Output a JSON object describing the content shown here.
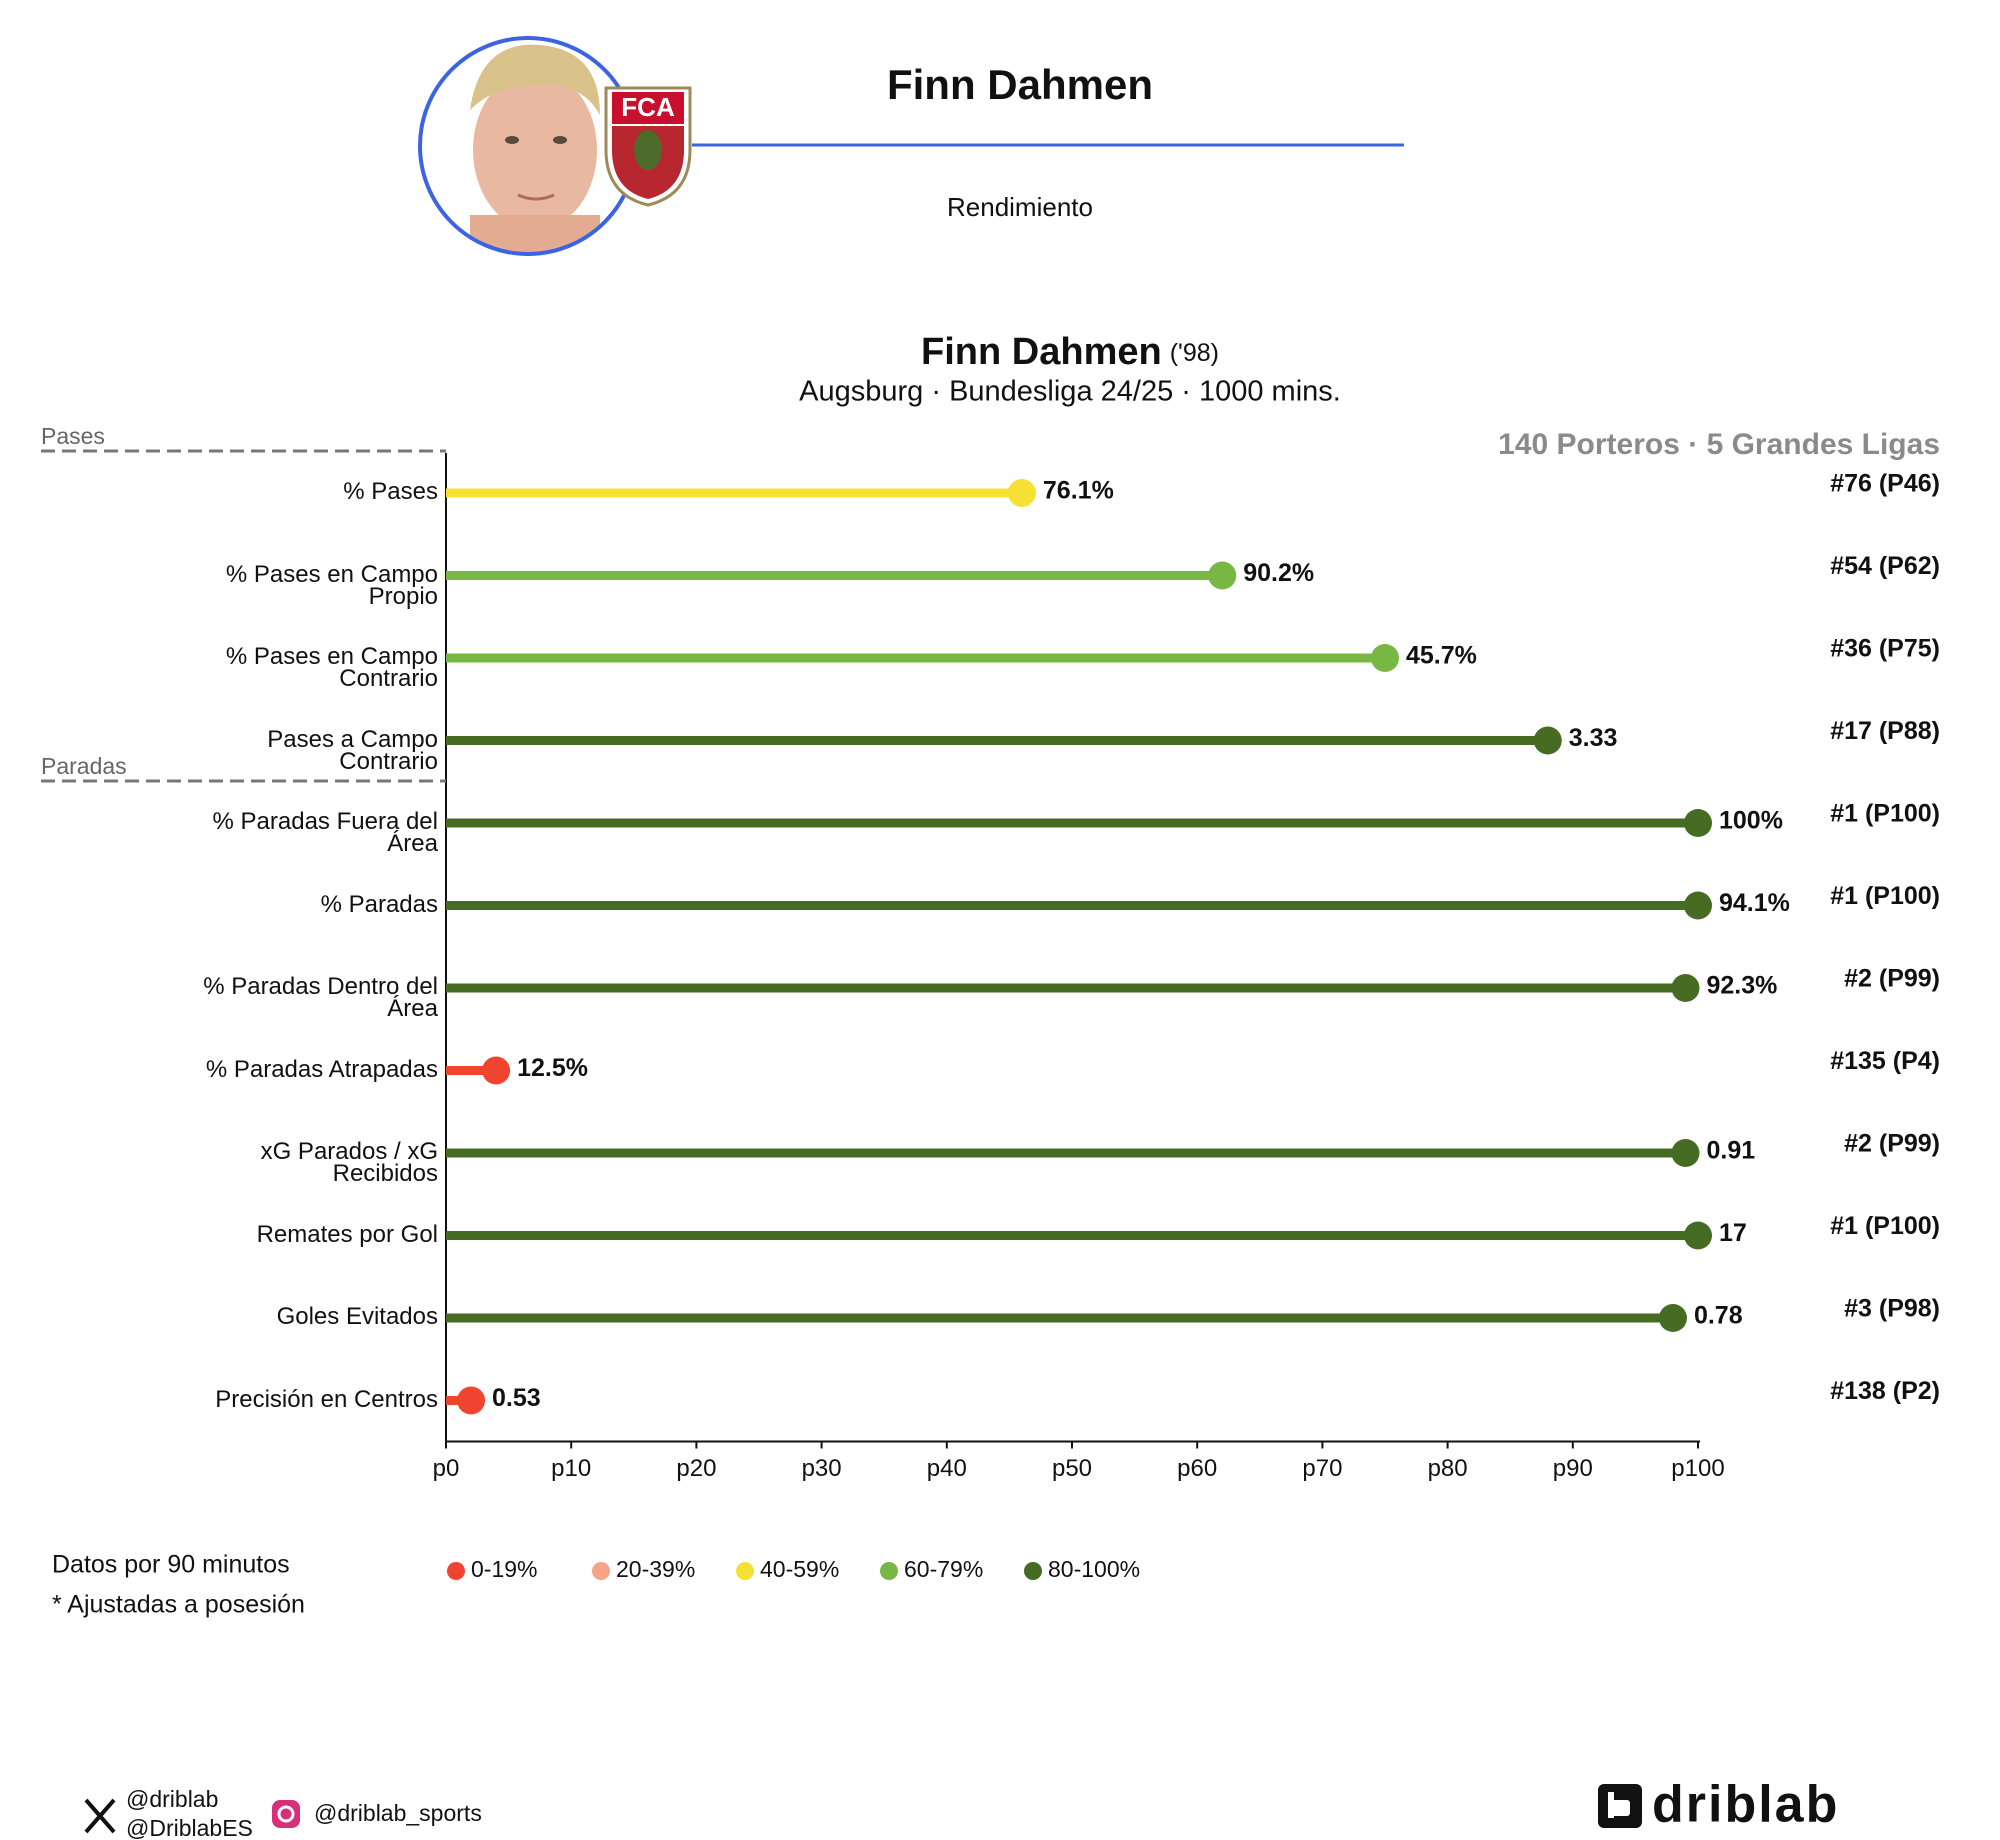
{
  "header": {
    "name": "Finn Dahmen",
    "subtitle": "Rendimiento",
    "crest_text": "FCA"
  },
  "chart_data": {
    "type": "lollipop",
    "title": "Finn Dahmen",
    "title_suffix": "('98)",
    "subtitle": "Augsburg · Bundesliga 24/25 · 1000 mins.",
    "context": "140 Porteros · 5 Grandes Ligas",
    "xlim": [
      0,
      100
    ],
    "xticks": [
      {
        "value": 0,
        "label": "p0"
      },
      {
        "value": 10,
        "label": "p10"
      },
      {
        "value": 20,
        "label": "p20"
      },
      {
        "value": 30,
        "label": "p30"
      },
      {
        "value": 40,
        "label": "p40"
      },
      {
        "value": 50,
        "label": "p50"
      },
      {
        "value": 60,
        "label": "p60"
      },
      {
        "value": 70,
        "label": "p70"
      },
      {
        "value": 80,
        "label": "p80"
      },
      {
        "value": 90,
        "label": "p90"
      },
      {
        "value": 100,
        "label": "p100"
      }
    ],
    "groups": [
      {
        "name": "Pases",
        "rows": [
          {
            "label": "% Pases",
            "value": 46,
            "stat": "76.1%",
            "rank": "#76 (P46)",
            "color": "#f7e034"
          },
          {
            "label": "% Pases en Campo\nPropio",
            "value": 62,
            "stat": "90.2%",
            "rank": "#54 (P62)",
            "color": "#78b743"
          },
          {
            "label": "% Pases en Campo\nContrario",
            "value": 75,
            "stat": "45.7%",
            "rank": "#36 (P75)",
            "color": "#78b743"
          },
          {
            "label": "Pases a Campo\nContrario",
            "value": 88,
            "stat": "3.33",
            "rank": "#17 (P88)",
            "color": "#466b22"
          }
        ]
      },
      {
        "name": "Paradas",
        "rows": [
          {
            "label": "% Paradas Fuera del\nÁrea",
            "value": 100,
            "stat": "100%",
            "rank": "#1 (P100)",
            "color": "#466b22"
          },
          {
            "label": "% Paradas",
            "value": 100,
            "stat": "94.1%",
            "rank": "#1 (P100)",
            "color": "#466b22"
          },
          {
            "label": "% Paradas Dentro del\nÁrea",
            "value": 99,
            "stat": "92.3%",
            "rank": "#2 (P99)",
            "color": "#466b22"
          },
          {
            "label": "% Paradas Atrapadas",
            "value": 4,
            "stat": "12.5%",
            "rank": "#135 (P4)",
            "color": "#f04431"
          },
          {
            "label": "xG Parados / xG\nRecibidos",
            "value": 99,
            "stat": "0.91",
            "rank": "#2 (P99)",
            "color": "#466b22"
          },
          {
            "label": "Remates por Gol",
            "value": 100,
            "stat": "17",
            "rank": "#1 (P100)",
            "color": "#466b22"
          },
          {
            "label": "Goles Evitados",
            "value": 98,
            "stat": "0.78",
            "rank": "#3 (P98)",
            "color": "#466b22"
          },
          {
            "label": "Precisión en Centros",
            "value": 2,
            "stat": "0.53",
            "rank": "#138 (P2)",
            "color": "#f04431"
          }
        ]
      }
    ],
    "legend": [
      {
        "label": "0-19%",
        "color": "#f04431"
      },
      {
        "label": "20-39%",
        "color": "#f7a486"
      },
      {
        "label": "40-59%",
        "color": "#f7e034"
      },
      {
        "label": "60-79%",
        "color": "#78b743"
      },
      {
        "label": "80-100%",
        "color": "#466b22"
      }
    ]
  },
  "footer": {
    "notes": [
      "Datos por 90 minutos",
      "* Ajustadas a posesión"
    ],
    "twitter": [
      "@driblab",
      "@DriblabES"
    ],
    "instagram": "@driblab_sports",
    "brand": "driblab"
  }
}
